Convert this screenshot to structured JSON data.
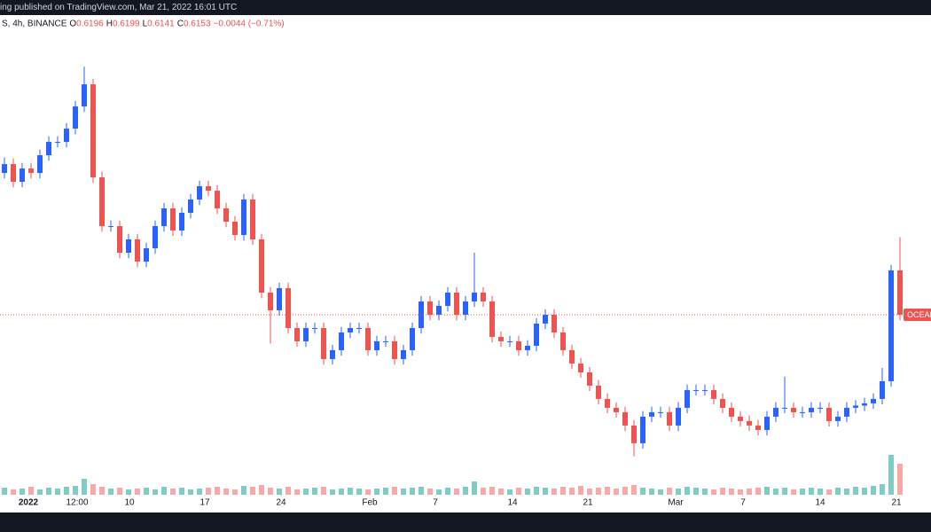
{
  "chart_data": {
    "type": "candlestick",
    "title": "ing published on TradingView.com, Mar 21, 2022 16:01 UTC",
    "symbol": "S, 4h, BINANCE",
    "ohlc_keys": [
      "O",
      "H",
      "L",
      "C"
    ],
    "ohlc_values": [
      0.6196,
      0.6199,
      0.6141,
      0.6153
    ],
    "change": "−0.0044 (−0.71%)",
    "price_tag": "OCEAN",
    "up_color": "#2962ff",
    "down_color": "#ef5350",
    "volume_up_color": "#80cbc4",
    "volume_down_color": "#f7a9a7",
    "ylim": [
      0.29,
      1.156
    ],
    "xlim": [
      0,
      105
    ],
    "vlim": [
      0,
      60
    ],
    "xticks": [
      {
        "value": 3.2,
        "label": "2022"
      },
      {
        "value": 8.7,
        "label": "12:00"
      },
      {
        "value": 14.6,
        "label": "10"
      },
      {
        "value": 23.1,
        "label": "17"
      },
      {
        "value": 31.7,
        "label": "24"
      },
      {
        "value": 41.7,
        "label": "Feb"
      },
      {
        "value": 49.1,
        "label": "7"
      },
      {
        "value": 57.8,
        "label": "14"
      },
      {
        "value": 66.3,
        "label": "21"
      },
      {
        "value": 76.2,
        "label": "Mar"
      },
      {
        "value": 83.8,
        "label": "7"
      },
      {
        "value": 92.5,
        "label": "14"
      },
      {
        "value": 101.1,
        "label": "21"
      }
    ],
    "open": [
      0.871,
      0.887,
      0.855,
      0.879,
      0.871,
      0.903,
      0.927,
      0.927,
      0.951,
      0.991,
      1.031,
      0.863,
      0.775,
      0.775,
      0.727,
      0.751,
      0.711,
      0.735,
      0.775,
      0.807,
      0.767,
      0.799,
      0.823,
      0.847,
      0.839,
      0.807,
      0.783,
      0.759,
      0.823,
      0.751,
      0.655,
      0.623,
      0.663,
      0.591,
      0.567,
      0.591,
      0.591,
      0.535,
      0.551,
      0.583,
      0.591,
      0.591,
      0.551,
      0.567,
      0.567,
      0.535,
      0.551,
      0.591,
      0.639,
      0.615,
      0.631,
      0.655,
      0.615,
      0.639,
      0.655,
      0.639,
      0.575,
      0.567,
      0.567,
      0.551,
      0.559,
      0.599,
      0.615,
      0.583,
      0.551,
      0.527,
      0.511,
      0.487,
      0.463,
      0.447,
      0.439,
      0.415,
      0.383,
      0.431,
      0.439,
      0.439,
      0.415,
      0.447,
      0.479,
      0.479,
      0.479,
      0.463,
      0.447,
      0.431,
      0.423,
      0.415,
      0.407,
      0.431,
      0.447,
      0.447,
      0.439,
      0.439,
      0.447,
      0.447,
      0.423,
      0.431,
      0.447,
      0.451,
      0.455,
      0.463,
      0.495,
      0.695
    ],
    "high": [
      0.899,
      0.897,
      0.889,
      0.889,
      0.913,
      0.937,
      0.937,
      0.961,
      1.001,
      1.063,
      1.041,
      0.873,
      0.785,
      0.785,
      0.761,
      0.761,
      0.745,
      0.785,
      0.817,
      0.817,
      0.809,
      0.833,
      0.857,
      0.857,
      0.849,
      0.817,
      0.793,
      0.833,
      0.833,
      0.761,
      0.665,
      0.673,
      0.673,
      0.601,
      0.601,
      0.601,
      0.601,
      0.561,
      0.593,
      0.601,
      0.601,
      0.601,
      0.577,
      0.577,
      0.577,
      0.561,
      0.601,
      0.649,
      0.649,
      0.641,
      0.665,
      0.665,
      0.649,
      0.727,
      0.665,
      0.649,
      0.585,
      0.577,
      0.577,
      0.569,
      0.609,
      0.625,
      0.625,
      0.593,
      0.561,
      0.537,
      0.521,
      0.497,
      0.473,
      0.457,
      0.449,
      0.425,
      0.441,
      0.449,
      0.449,
      0.449,
      0.457,
      0.489,
      0.489,
      0.489,
      0.489,
      0.473,
      0.457,
      0.441,
      0.433,
      0.425,
      0.441,
      0.457,
      0.503,
      0.457,
      0.449,
      0.457,
      0.457,
      0.457,
      0.441,
      0.457,
      0.461,
      0.465,
      0.473,
      0.519,
      0.705,
      0.755
    ],
    "low": [
      0.861,
      0.845,
      0.845,
      0.861,
      0.861,
      0.893,
      0.917,
      0.917,
      0.941,
      0.981,
      0.853,
      0.765,
      0.765,
      0.717,
      0.717,
      0.701,
      0.701,
      0.725,
      0.765,
      0.757,
      0.757,
      0.789,
      0.813,
      0.829,
      0.797,
      0.773,
      0.749,
      0.749,
      0.741,
      0.645,
      0.563,
      0.613,
      0.581,
      0.557,
      0.557,
      0.581,
      0.525,
      0.525,
      0.541,
      0.573,
      0.581,
      0.541,
      0.541,
      0.557,
      0.525,
      0.525,
      0.541,
      0.581,
      0.605,
      0.605,
      0.621,
      0.605,
      0.605,
      0.629,
      0.629,
      0.565,
      0.557,
      0.557,
      0.541,
      0.541,
      0.549,
      0.589,
      0.573,
      0.541,
      0.517,
      0.501,
      0.477,
      0.453,
      0.437,
      0.429,
      0.405,
      0.359,
      0.373,
      0.421,
      0.429,
      0.405,
      0.405,
      0.437,
      0.469,
      0.469,
      0.453,
      0.437,
      0.421,
      0.413,
      0.405,
      0.397,
      0.397,
      0.421,
      0.437,
      0.429,
      0.429,
      0.429,
      0.437,
      0.413,
      0.413,
      0.421,
      0.437,
      0.441,
      0.445,
      0.453,
      0.485,
      0.605
    ],
    "close": [
      0.887,
      0.855,
      0.879,
      0.871,
      0.903,
      0.927,
      0.927,
      0.951,
      0.991,
      1.031,
      0.863,
      0.775,
      0.775,
      0.727,
      0.751,
      0.711,
      0.735,
      0.775,
      0.807,
      0.767,
      0.799,
      0.823,
      0.847,
      0.839,
      0.807,
      0.783,
      0.759,
      0.823,
      0.751,
      0.655,
      0.623,
      0.663,
      0.591,
      0.567,
      0.591,
      0.591,
      0.535,
      0.551,
      0.583,
      0.591,
      0.591,
      0.551,
      0.567,
      0.567,
      0.535,
      0.551,
      0.591,
      0.639,
      0.615,
      0.631,
      0.655,
      0.615,
      0.639,
      0.655,
      0.639,
      0.575,
      0.567,
      0.567,
      0.551,
      0.559,
      0.599,
      0.615,
      0.583,
      0.551,
      0.527,
      0.511,
      0.487,
      0.463,
      0.447,
      0.439,
      0.415,
      0.383,
      0.431,
      0.439,
      0.439,
      0.415,
      0.447,
      0.479,
      0.479,
      0.479,
      0.463,
      0.447,
      0.431,
      0.423,
      0.415,
      0.407,
      0.431,
      0.447,
      0.447,
      0.439,
      0.439,
      0.447,
      0.447,
      0.423,
      0.431,
      0.447,
      0.451,
      0.455,
      0.463,
      0.495,
      0.695,
      0.615
    ],
    "volume": [
      8,
      6,
      7,
      9,
      6,
      8,
      7,
      9,
      10,
      18,
      12,
      9,
      7,
      8,
      6,
      7,
      8,
      6,
      9,
      7,
      8,
      6,
      7,
      8,
      9,
      7,
      6,
      10,
      9,
      11,
      8,
      7,
      9,
      6,
      7,
      8,
      9,
      6,
      7,
      8,
      7,
      6,
      7,
      8,
      9,
      7,
      8,
      9,
      7,
      6,
      8,
      7,
      9,
      15,
      8,
      9,
      7,
      6,
      8,
      7,
      9,
      8,
      7,
      9,
      8,
      10,
      7,
      8,
      9,
      7,
      9,
      11,
      8,
      7,
      6,
      8,
      7,
      9,
      8,
      7,
      6,
      8,
      7,
      6,
      7,
      8,
      9,
      7,
      8,
      6,
      7,
      8,
      7,
      6,
      8,
      7,
      9,
      8,
      10,
      12,
      45,
      35
    ]
  }
}
